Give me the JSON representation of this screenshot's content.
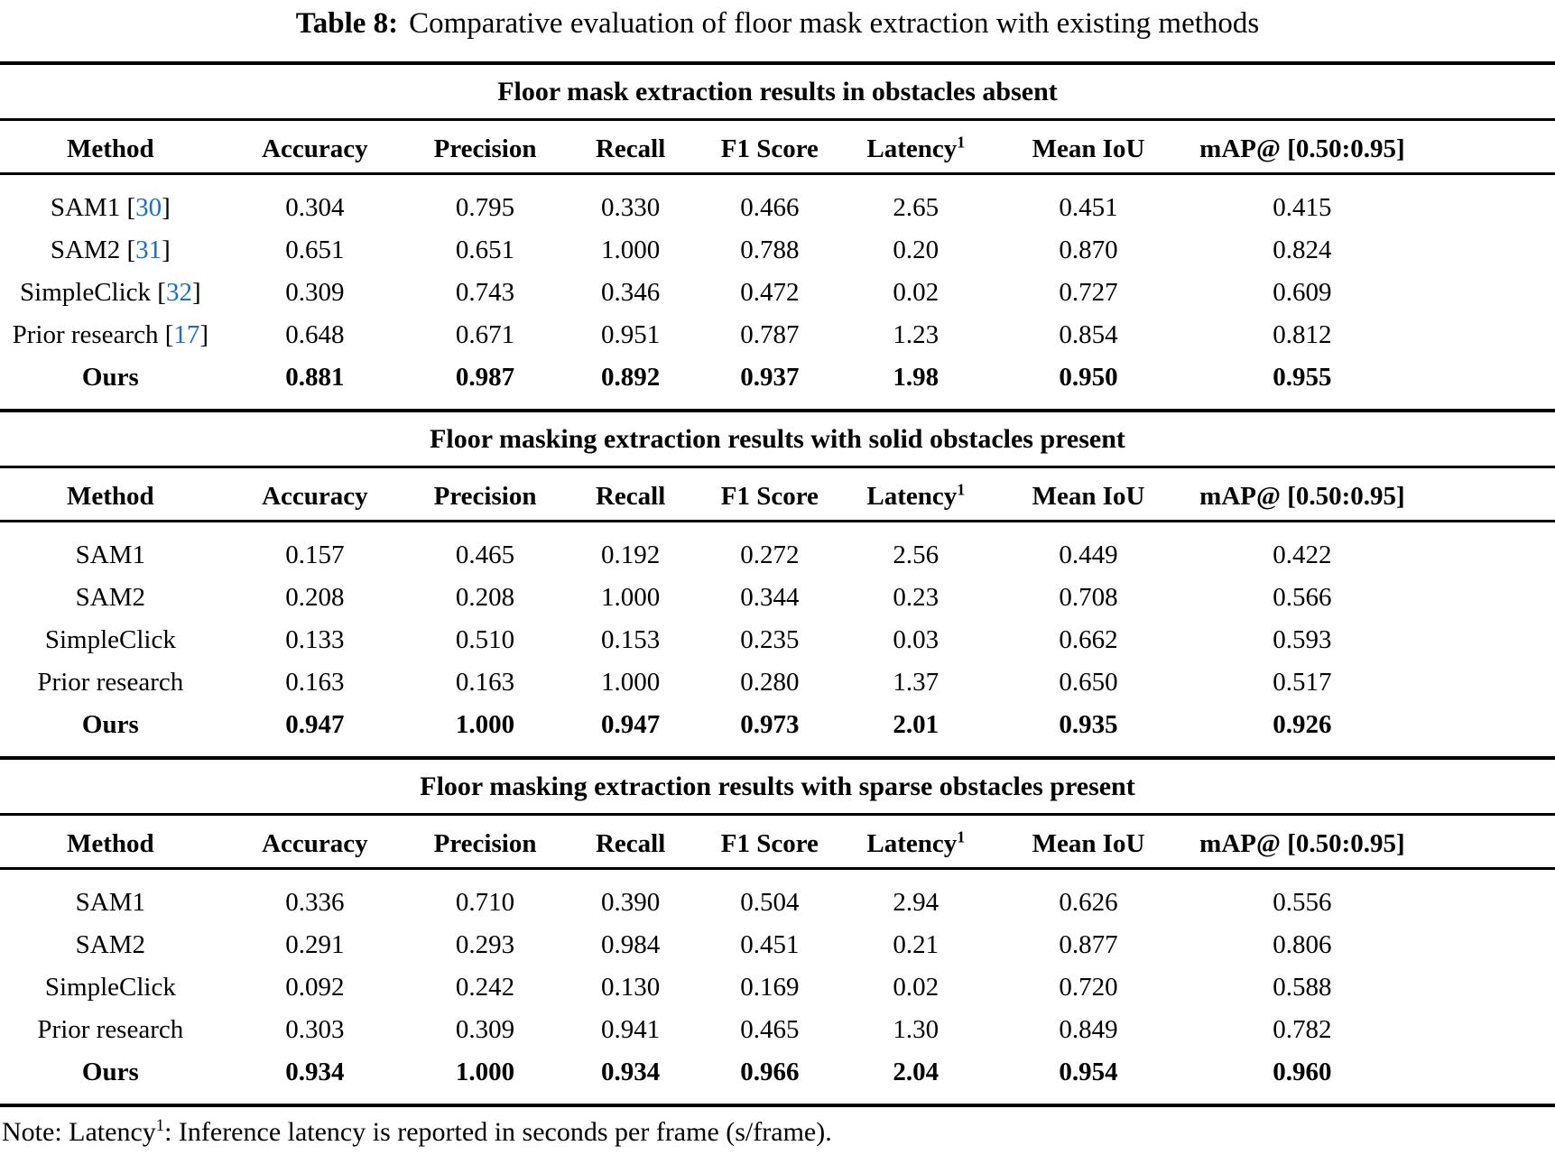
{
  "caption": {
    "label": "Table 8:",
    "text": "Comparative evaluation of floor mask extraction with existing methods"
  },
  "columns": [
    {
      "label": "Method",
      "sup": ""
    },
    {
      "label": "Accuracy",
      "sup": ""
    },
    {
      "label": "Precision",
      "sup": ""
    },
    {
      "label": "Recall",
      "sup": ""
    },
    {
      "label": "F1 Score",
      "sup": ""
    },
    {
      "label": "Latency",
      "sup": "1"
    },
    {
      "label": "Mean IoU",
      "sup": ""
    },
    {
      "label": "mAP@ [0.50:0.95]",
      "sup": ""
    }
  ],
  "citation_brackets": {
    "open": "[",
    "close": "]"
  },
  "sections": [
    {
      "title": "Floor mask extraction results in obstacles absent",
      "rows": [
        {
          "method": "SAM1",
          "cite": "30",
          "bold": false,
          "values": [
            "0.304",
            "0.795",
            "0.330",
            "0.466",
            "2.65",
            "0.451",
            "0.415"
          ]
        },
        {
          "method": "SAM2",
          "cite": "31",
          "bold": false,
          "values": [
            "0.651",
            "0.651",
            "1.000",
            "0.788",
            "0.20",
            "0.870",
            "0.824"
          ]
        },
        {
          "method": "SimpleClick",
          "cite": "32",
          "bold": false,
          "values": [
            "0.309",
            "0.743",
            "0.346",
            "0.472",
            "0.02",
            "0.727",
            "0.609"
          ]
        },
        {
          "method": "Prior research",
          "cite": "17",
          "bold": false,
          "values": [
            "0.648",
            "0.671",
            "0.951",
            "0.787",
            "1.23",
            "0.854",
            "0.812"
          ]
        },
        {
          "method": "Ours",
          "cite": "",
          "bold": true,
          "values": [
            "0.881",
            "0.987",
            "0.892",
            "0.937",
            "1.98",
            "0.950",
            "0.955"
          ]
        }
      ]
    },
    {
      "title": "Floor masking extraction results with solid obstacles present",
      "rows": [
        {
          "method": "SAM1",
          "cite": "",
          "bold": false,
          "values": [
            "0.157",
            "0.465",
            "0.192",
            "0.272",
            "2.56",
            "0.449",
            "0.422"
          ]
        },
        {
          "method": "SAM2",
          "cite": "",
          "bold": false,
          "values": [
            "0.208",
            "0.208",
            "1.000",
            "0.344",
            "0.23",
            "0.708",
            "0.566"
          ]
        },
        {
          "method": "SimpleClick",
          "cite": "",
          "bold": false,
          "values": [
            "0.133",
            "0.510",
            "0.153",
            "0.235",
            "0.03",
            "0.662",
            "0.593"
          ]
        },
        {
          "method": "Prior research",
          "cite": "",
          "bold": false,
          "values": [
            "0.163",
            "0.163",
            "1.000",
            "0.280",
            "1.37",
            "0.650",
            "0.517"
          ]
        },
        {
          "method": "Ours",
          "cite": "",
          "bold": true,
          "values": [
            "0.947",
            "1.000",
            "0.947",
            "0.973",
            "2.01",
            "0.935",
            "0.926"
          ]
        }
      ]
    },
    {
      "title": "Floor masking extraction results with sparse obstacles present",
      "rows": [
        {
          "method": "SAM1",
          "cite": "",
          "bold": false,
          "values": [
            "0.336",
            "0.710",
            "0.390",
            "0.504",
            "2.94",
            "0.626",
            "0.556"
          ]
        },
        {
          "method": "SAM2",
          "cite": "",
          "bold": false,
          "values": [
            "0.291",
            "0.293",
            "0.984",
            "0.451",
            "0.21",
            "0.877",
            "0.806"
          ]
        },
        {
          "method": "SimpleClick",
          "cite": "",
          "bold": false,
          "values": [
            "0.092",
            "0.242",
            "0.130",
            "0.169",
            "0.02",
            "0.720",
            "0.588"
          ]
        },
        {
          "method": "Prior research",
          "cite": "",
          "bold": false,
          "values": [
            "0.303",
            "0.309",
            "0.941",
            "0.465",
            "1.30",
            "0.849",
            "0.782"
          ]
        },
        {
          "method": "Ours",
          "cite": "",
          "bold": true,
          "values": [
            "0.934",
            "1.000",
            "0.934",
            "0.966",
            "2.04",
            "0.954",
            "0.960"
          ]
        }
      ]
    }
  ],
  "note": {
    "prefix": "Note: Latency",
    "sup": "1",
    "rest": ": Inference latency is reported in seconds per frame (s/frame)."
  },
  "colors": {
    "citation_blue": "#1c6cc8",
    "text_black": "#000000",
    "rule_black": "#000000"
  }
}
